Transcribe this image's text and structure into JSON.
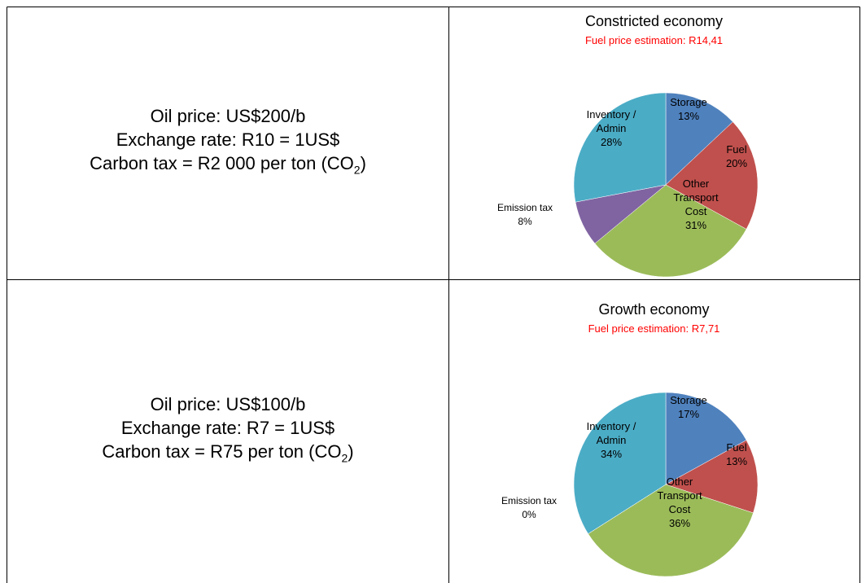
{
  "table": {
    "rows": [
      {
        "oil_price": "Oil price: US$200/b",
        "exchange_rate": "Exchange rate: R10 = 1US$",
        "carbon_tax": {
          "text": "Carbon tax = R2 000 per ton (CO",
          "sub": "2",
          "tail": ")"
        }
      },
      {
        "oil_price": "Oil price: US$100/b",
        "exchange_rate": "Exchange rate: R7 = 1US$",
        "carbon_tax": {
          "text": "Carbon tax = R75 per ton (CO",
          "sub": "2",
          "tail": ")"
        }
      }
    ]
  },
  "chart_data": [
    {
      "type": "pie",
      "title": "Constricted economy",
      "subtitle": "Fuel price estimation:  R14,41",
      "subtitle_color": "#ff0000",
      "categories": [
        "Storage",
        "Fuel",
        "Other Transport Cost",
        "Emission tax",
        "Inventory / Admin"
      ],
      "values": [
        13,
        20,
        31,
        8,
        28
      ],
      "value_labels": [
        "13%",
        "20%",
        "31%",
        "8%",
        "28%"
      ],
      "colors": [
        "#4f81bd",
        "#c0504d",
        "#9bbb59",
        "#8064a2",
        "#4bacc6"
      ]
    },
    {
      "type": "pie",
      "title": "Growth economy",
      "subtitle": "Fuel price estimation:  R7,71",
      "subtitle_color": "#ff0000",
      "categories": [
        "Storage",
        "Fuel",
        "Other Transport Cost",
        "Emission tax",
        "Inventory / Admin"
      ],
      "values": [
        17,
        13,
        36,
        0,
        34
      ],
      "value_labels": [
        "17%",
        "13%",
        "36%",
        "0%",
        "34%"
      ],
      "colors": [
        "#4f81bd",
        "#c0504d",
        "#9bbb59",
        "#8064a2",
        "#4bacc6"
      ]
    }
  ]
}
